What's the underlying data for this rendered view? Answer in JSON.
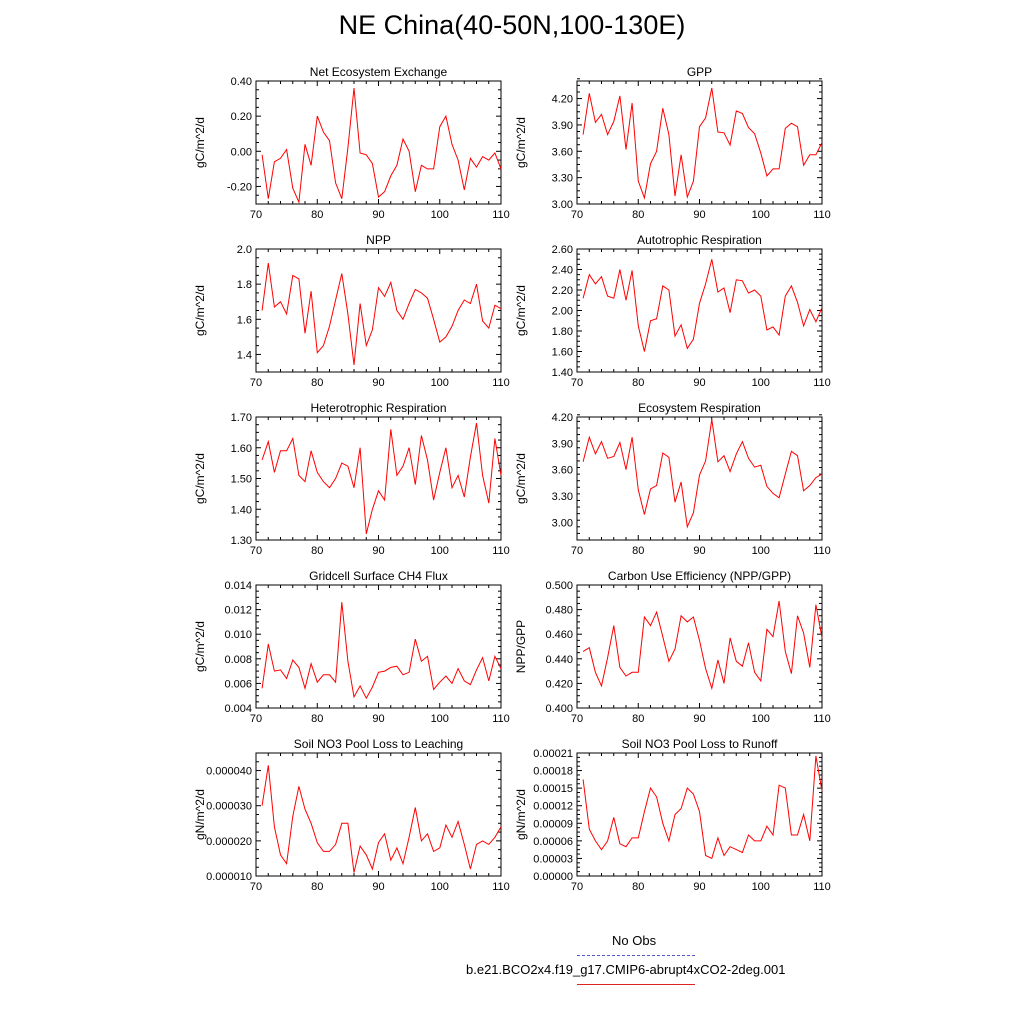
{
  "page": {
    "title": "NE China(40-50N,100-130E)",
    "series_color": "#ff0000",
    "obs_color": "#5555cc"
  },
  "legend": {
    "obs_label": "No Obs",
    "case_label": "b.e21.BCO2x4.f19_g17.CMIP6-abrupt4xCO2-2deg.001"
  },
  "chart_data": [
    {
      "type": "line",
      "title": "Net Ecosystem Exchange",
      "ylabel": "gC/m^2/d",
      "xlim": [
        70,
        110
      ],
      "ylim": [
        -0.3,
        0.4
      ],
      "xticks": [
        70,
        80,
        90,
        100,
        110
      ],
      "xtick_labels": [
        "70",
        "80",
        "90",
        "100",
        "110"
      ],
      "yticks": [
        -0.2,
        0.0,
        0.2,
        0.4
      ],
      "ytick_labels": [
        "-0.20",
        "0.00",
        "0.20",
        "0.40"
      ],
      "x": [
        71,
        72,
        73,
        74,
        75,
        76,
        77,
        78,
        79,
        80,
        81,
        82,
        83,
        84,
        85,
        86,
        87,
        88,
        89,
        90,
        91,
        92,
        93,
        94,
        95,
        96,
        97,
        98,
        99,
        100,
        101,
        102,
        103,
        104,
        105,
        106,
        107,
        108,
        109,
        110
      ],
      "values": [
        -0.02,
        -0.27,
        -0.06,
        -0.04,
        0.01,
        -0.21,
        -0.29,
        0.04,
        -0.08,
        0.2,
        0.11,
        0.06,
        -0.18,
        -0.27,
        0.02,
        0.36,
        -0.01,
        -0.02,
        -0.07,
        -0.26,
        -0.23,
        -0.14,
        -0.08,
        0.07,
        0.0,
        -0.23,
        -0.08,
        -0.1,
        -0.1,
        0.14,
        0.2,
        0.04,
        -0.05,
        -0.22,
        -0.04,
        -0.09,
        -0.03,
        -0.05,
        -0.01,
        -0.1
      ]
    },
    {
      "type": "line",
      "title": "GPP",
      "ylabel": "gC/m^2/d",
      "xlim": [
        70,
        110
      ],
      "ylim": [
        3.0,
        4.4
      ],
      "xticks": [
        70,
        80,
        90,
        100,
        110
      ],
      "xtick_labels": [
        "70",
        "80",
        "90",
        "100",
        "110"
      ],
      "yticks": [
        3.0,
        3.3,
        3.6,
        3.9,
        4.2
      ],
      "ytick_labels": [
        "3.00",
        "3.30",
        "3.60",
        "3.90",
        "4.20"
      ],
      "x": [
        71,
        72,
        73,
        74,
        75,
        76,
        77,
        78,
        79,
        80,
        81,
        82,
        83,
        84,
        85,
        86,
        87,
        88,
        89,
        90,
        91,
        92,
        93,
        94,
        95,
        96,
        97,
        98,
        99,
        100,
        101,
        102,
        103,
        104,
        105,
        106,
        107,
        108,
        109,
        110
      ],
      "values": [
        3.79,
        4.26,
        3.93,
        4.02,
        3.79,
        3.94,
        4.23,
        3.62,
        4.15,
        3.26,
        3.07,
        3.46,
        3.6,
        4.09,
        3.79,
        3.09,
        3.56,
        3.08,
        3.26,
        3.88,
        3.98,
        4.32,
        3.82,
        3.81,
        3.67,
        4.06,
        4.03,
        3.87,
        3.8,
        3.58,
        3.32,
        3.4,
        3.4,
        3.86,
        3.92,
        3.88,
        3.44,
        3.56,
        3.56,
        3.7
      ]
    },
    {
      "type": "line",
      "title": "NPP",
      "ylabel": "gC/m^2/d",
      "xlim": [
        70,
        110
      ],
      "ylim": [
        1.3,
        2.0
      ],
      "xticks": [
        70,
        80,
        90,
        100,
        110
      ],
      "xtick_labels": [
        "70",
        "80",
        "90",
        "100",
        "110"
      ],
      "yticks": [
        1.4,
        1.6,
        1.8,
        2.0
      ],
      "ytick_labels": [
        "1.4",
        "1.6",
        "1.8",
        "2.0"
      ],
      "x": [
        71,
        72,
        73,
        74,
        75,
        76,
        77,
        78,
        79,
        80,
        81,
        82,
        83,
        84,
        85,
        86,
        87,
        88,
        89,
        90,
        91,
        92,
        93,
        94,
        95,
        96,
        97,
        98,
        99,
        100,
        101,
        102,
        103,
        104,
        105,
        106,
        107,
        108,
        109,
        110
      ],
      "values": [
        1.65,
        1.92,
        1.67,
        1.7,
        1.63,
        1.85,
        1.83,
        1.52,
        1.76,
        1.41,
        1.45,
        1.56,
        1.71,
        1.86,
        1.63,
        1.34,
        1.69,
        1.45,
        1.54,
        1.78,
        1.73,
        1.81,
        1.65,
        1.6,
        1.69,
        1.77,
        1.75,
        1.72,
        1.6,
        1.47,
        1.5,
        1.56,
        1.65,
        1.71,
        1.69,
        1.8,
        1.59,
        1.55,
        1.68,
        1.66
      ]
    },
    {
      "type": "line",
      "title": "Autotrophic Respiration",
      "ylabel": "gC/m^2/d",
      "xlim": [
        70,
        110
      ],
      "ylim": [
        1.4,
        2.6
      ],
      "xticks": [
        70,
        80,
        90,
        100,
        110
      ],
      "xtick_labels": [
        "70",
        "80",
        "90",
        "100",
        "110"
      ],
      "yticks": [
        1.4,
        1.6,
        1.8,
        2.0,
        2.2,
        2.4,
        2.6
      ],
      "ytick_labels": [
        "1.40",
        "1.60",
        "1.80",
        "2.00",
        "2.20",
        "2.40",
        "2.60"
      ],
      "x": [
        71,
        72,
        73,
        74,
        75,
        76,
        77,
        78,
        79,
        80,
        81,
        82,
        83,
        84,
        85,
        86,
        87,
        88,
        89,
        90,
        91,
        92,
        93,
        94,
        95,
        96,
        97,
        98,
        99,
        100,
        101,
        102,
        103,
        104,
        105,
        106,
        107,
        108,
        109,
        110
      ],
      "values": [
        2.12,
        2.35,
        2.26,
        2.33,
        2.14,
        2.12,
        2.4,
        2.1,
        2.39,
        1.85,
        1.6,
        1.9,
        1.92,
        2.24,
        2.2,
        1.75,
        1.86,
        1.63,
        1.72,
        2.07,
        2.26,
        2.5,
        2.18,
        2.22,
        1.98,
        2.3,
        2.29,
        2.17,
        2.2,
        2.14,
        1.81,
        1.84,
        1.76,
        2.14,
        2.24,
        2.08,
        1.85,
        2.01,
        1.89,
        2.03
      ]
    },
    {
      "type": "line",
      "title": "Heterotrophic Respiration",
      "ylabel": "gC/m^2/d",
      "xlim": [
        70,
        110
      ],
      "ylim": [
        1.3,
        1.7
      ],
      "xticks": [
        70,
        80,
        90,
        100,
        110
      ],
      "xtick_labels": [
        "70",
        "80",
        "90",
        "100",
        "110"
      ],
      "yticks": [
        1.3,
        1.4,
        1.5,
        1.6,
        1.7
      ],
      "ytick_labels": [
        "1.30",
        "1.40",
        "1.50",
        "1.60",
        "1.70"
      ],
      "x": [
        71,
        72,
        73,
        74,
        75,
        76,
        77,
        78,
        79,
        80,
        81,
        82,
        83,
        84,
        85,
        86,
        87,
        88,
        89,
        90,
        91,
        92,
        93,
        94,
        95,
        96,
        97,
        98,
        99,
        100,
        101,
        102,
        103,
        104,
        105,
        106,
        107,
        108,
        109,
        110
      ],
      "values": [
        1.56,
        1.62,
        1.52,
        1.59,
        1.59,
        1.63,
        1.51,
        1.49,
        1.59,
        1.52,
        1.49,
        1.47,
        1.5,
        1.55,
        1.54,
        1.47,
        1.6,
        1.32,
        1.4,
        1.46,
        1.43,
        1.66,
        1.51,
        1.54,
        1.6,
        1.48,
        1.64,
        1.56,
        1.43,
        1.52,
        1.6,
        1.47,
        1.51,
        1.44,
        1.57,
        1.68,
        1.51,
        1.42,
        1.63,
        1.51
      ]
    },
    {
      "type": "line",
      "title": "Ecosystem Respiration",
      "ylabel": "gC/m^2/d",
      "xlim": [
        70,
        110
      ],
      "ylim": [
        2.8,
        4.2
      ],
      "xticks": [
        70,
        80,
        90,
        100,
        110
      ],
      "xtick_labels": [
        "70",
        "80",
        "90",
        "100",
        "110"
      ],
      "yticks": [
        3.0,
        3.3,
        3.6,
        3.9,
        4.2
      ],
      "ytick_labels": [
        "3.00",
        "3.30",
        "3.60",
        "3.90",
        "4.20"
      ],
      "x": [
        71,
        72,
        73,
        74,
        75,
        76,
        77,
        78,
        79,
        80,
        81,
        82,
        83,
        84,
        85,
        86,
        87,
        88,
        89,
        90,
        91,
        92,
        93,
        94,
        95,
        96,
        97,
        98,
        99,
        100,
        101,
        102,
        103,
        104,
        105,
        106,
        107,
        108,
        109,
        110
      ],
      "values": [
        3.69,
        3.97,
        3.78,
        3.92,
        3.73,
        3.75,
        3.91,
        3.6,
        3.97,
        3.37,
        3.09,
        3.38,
        3.42,
        3.79,
        3.74,
        3.23,
        3.46,
        2.95,
        3.11,
        3.54,
        3.7,
        4.17,
        3.69,
        3.76,
        3.58,
        3.78,
        3.92,
        3.73,
        3.63,
        3.65,
        3.41,
        3.33,
        3.28,
        3.55,
        3.81,
        3.76,
        3.36,
        3.42,
        3.51,
        3.55
      ]
    },
    {
      "type": "line",
      "title": "Gridcell Surface CH4 Flux",
      "ylabel": "gC/m^2/d",
      "xlim": [
        70,
        110
      ],
      "ylim": [
        0.004,
        0.014
      ],
      "xticks": [
        70,
        80,
        90,
        100,
        110
      ],
      "xtick_labels": [
        "70",
        "80",
        "90",
        "100",
        "110"
      ],
      "yticks": [
        0.004,
        0.006,
        0.008,
        0.01,
        0.012,
        0.014
      ],
      "ytick_labels": [
        "0.004",
        "0.006",
        "0.008",
        "0.010",
        "0.012",
        "0.014"
      ],
      "x": [
        71,
        72,
        73,
        74,
        75,
        76,
        77,
        78,
        79,
        80,
        81,
        82,
        83,
        84,
        85,
        86,
        87,
        88,
        89,
        90,
        91,
        92,
        93,
        94,
        95,
        96,
        97,
        98,
        99,
        100,
        101,
        102,
        103,
        104,
        105,
        106,
        107,
        108,
        109,
        110
      ],
      "values": [
        0.0056,
        0.0092,
        0.007,
        0.0071,
        0.0064,
        0.0079,
        0.0073,
        0.0056,
        0.0076,
        0.0061,
        0.0067,
        0.0067,
        0.0061,
        0.0126,
        0.0078,
        0.0049,
        0.0058,
        0.0048,
        0.0057,
        0.0069,
        0.007,
        0.0073,
        0.0074,
        0.0067,
        0.0069,
        0.0096,
        0.0078,
        0.0082,
        0.0055,
        0.0061,
        0.0066,
        0.006,
        0.0072,
        0.0062,
        0.0059,
        0.0071,
        0.0081,
        0.0062,
        0.0082,
        0.0072
      ]
    },
    {
      "type": "line",
      "title": "Carbon Use Efficiency (NPP/GPP)",
      "ylabel": "NPP/GPP",
      "xlim": [
        70,
        110
      ],
      "ylim": [
        0.4,
        0.5
      ],
      "xticks": [
        70,
        80,
        90,
        100,
        110
      ],
      "xtick_labels": [
        "70",
        "80",
        "90",
        "100",
        "110"
      ],
      "yticks": [
        0.4,
        0.42,
        0.44,
        0.46,
        0.48,
        0.5
      ],
      "ytick_labels": [
        "0.400",
        "0.420",
        "0.440",
        "0.460",
        "0.480",
        "0.500"
      ],
      "x": [
        71,
        72,
        73,
        74,
        75,
        76,
        77,
        78,
        79,
        80,
        81,
        82,
        83,
        84,
        85,
        86,
        87,
        88,
        89,
        90,
        91,
        92,
        93,
        94,
        95,
        96,
        97,
        98,
        99,
        100,
        101,
        102,
        103,
        104,
        105,
        106,
        107,
        108,
        109,
        110
      ],
      "values": [
        0.446,
        0.449,
        0.429,
        0.418,
        0.441,
        0.467,
        0.433,
        0.426,
        0.429,
        0.429,
        0.474,
        0.467,
        0.478,
        0.458,
        0.438,
        0.448,
        0.475,
        0.47,
        0.474,
        0.455,
        0.432,
        0.416,
        0.439,
        0.42,
        0.457,
        0.438,
        0.434,
        0.453,
        0.429,
        0.422,
        0.464,
        0.458,
        0.487,
        0.446,
        0.428,
        0.475,
        0.461,
        0.433,
        0.484,
        0.457
      ]
    },
    {
      "type": "line",
      "title": "Soil NO3 Pool Loss to Leaching",
      "ylabel": "gN/m^2/d",
      "xlim": [
        70,
        110
      ],
      "ylim": [
        1e-05,
        4.5e-05
      ],
      "xticks": [
        70,
        80,
        90,
        100,
        110
      ],
      "xtick_labels": [
        "70",
        "80",
        "90",
        "100",
        "110"
      ],
      "yticks": [
        1e-05,
        2e-05,
        3e-05,
        4e-05
      ],
      "ytick_labels": [
        "0.000010",
        "0.000020",
        "0.000030",
        "0.000040"
      ],
      "x": [
        71,
        72,
        73,
        74,
        75,
        76,
        77,
        78,
        79,
        80,
        81,
        82,
        83,
        84,
        85,
        86,
        87,
        88,
        89,
        90,
        91,
        92,
        93,
        94,
        95,
        96,
        97,
        98,
        99,
        100,
        101,
        102,
        103,
        104,
        105,
        106,
        107,
        108,
        109,
        110
      ],
      "values": [
        3e-05,
        4.15e-05,
        2.4e-05,
        1.6e-05,
        1.35e-05,
        2.7e-05,
        3.55e-05,
        2.9e-05,
        2.5e-05,
        1.95e-05,
        1.7e-05,
        1.7e-05,
        1.9e-05,
        2.5e-05,
        2.5e-05,
        1.1e-05,
        1.85e-05,
        1.6e-05,
        1.2e-05,
        1.95e-05,
        2.2e-05,
        1.45e-05,
        1.8e-05,
        1.35e-05,
        2.1e-05,
        2.95e-05,
        2e-05,
        2.2e-05,
        1.7e-05,
        1.8e-05,
        2.45e-05,
        2.1e-05,
        2.55e-05,
        1.9e-05,
        1.2e-05,
        1.9e-05,
        2e-05,
        1.9e-05,
        2.1e-05,
        2.4e-05
      ]
    },
    {
      "type": "line",
      "title": "Soil NO3 Pool Loss to Runoff",
      "ylabel": "gN/m^2/d",
      "xlim": [
        70,
        110
      ],
      "ylim": [
        0.0,
        0.00021
      ],
      "xticks": [
        70,
        80,
        90,
        100,
        110
      ],
      "xtick_labels": [
        "70",
        "80",
        "90",
        "100",
        "110"
      ],
      "yticks": [
        0.0,
        3e-05,
        6e-05,
        9e-05,
        0.00012,
        0.00015,
        0.00018,
        0.00021
      ],
      "ytick_labels": [
        "0.00000",
        "0.00003",
        "0.00006",
        "0.00009",
        "0.00012",
        "0.00015",
        "0.00018",
        "0.00021"
      ],
      "x": [
        71,
        72,
        73,
        74,
        75,
        76,
        77,
        78,
        79,
        80,
        81,
        82,
        83,
        84,
        85,
        86,
        87,
        88,
        89,
        90,
        91,
        92,
        93,
        94,
        95,
        96,
        97,
        98,
        99,
        100,
        101,
        102,
        103,
        104,
        105,
        106,
        107,
        108,
        109,
        110
      ],
      "values": [
        0.000165,
        8e-05,
        6e-05,
        4.5e-05,
        6e-05,
        0.0001,
        5.5e-05,
        5e-05,
        6.5e-05,
        6.5e-05,
        0.00011,
        0.00015,
        0.000135,
        9e-05,
        6e-05,
        0.000105,
        0.000115,
        0.00015,
        0.00014,
        0.00011,
        3.5e-05,
        3e-05,
        6.5e-05,
        3.5e-05,
        5e-05,
        4.5e-05,
        4e-05,
        7e-05,
        6e-05,
        6e-05,
        8.5e-05,
        7e-05,
        0.000155,
        0.00015,
        7e-05,
        7e-05,
        0.000105,
        6e-05,
        0.000205,
        0.000145
      ]
    }
  ]
}
